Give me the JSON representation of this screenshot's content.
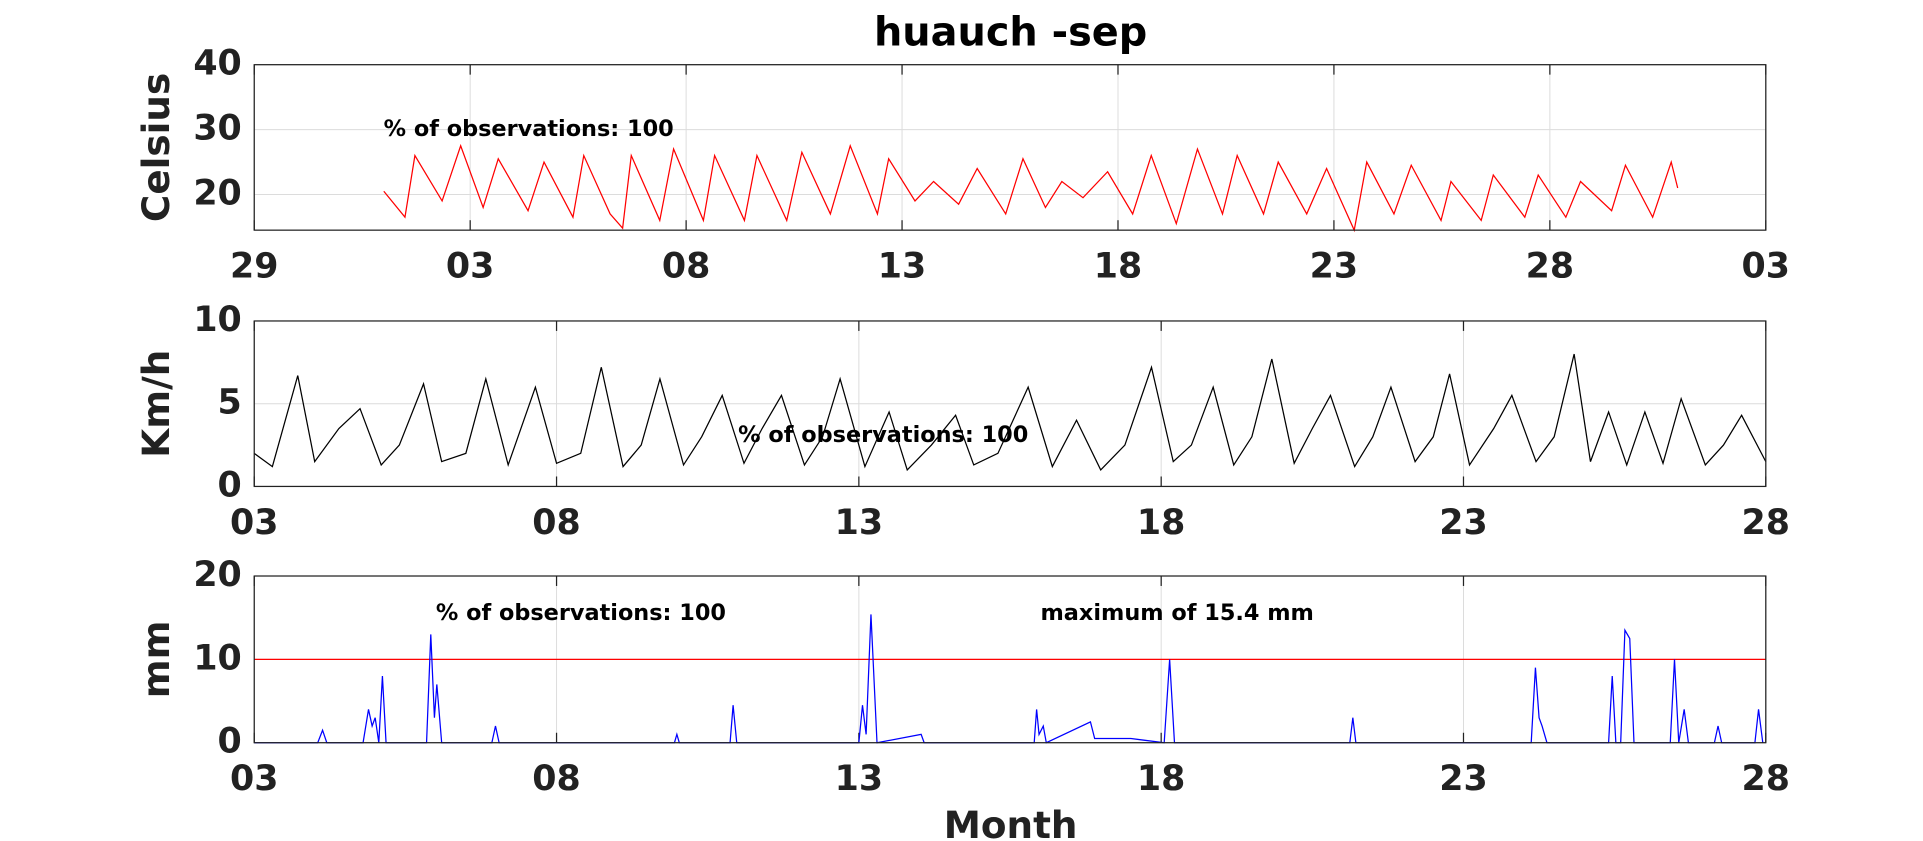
{
  "chart_data": [
    {
      "type": "line",
      "title": "huauch -sep",
      "ylabel": "Celsius",
      "color": "red",
      "grid": true,
      "annotations": [
        "% of observations: 100"
      ],
      "xlim": [
        0,
        35
      ],
      "ylim": [
        14.5,
        40
      ],
      "yticks": [
        20,
        30,
        40
      ],
      "xticks": [
        {
          "value": 0,
          "label": "29"
        },
        {
          "value": 5,
          "label": "03"
        },
        {
          "value": 10,
          "label": "08"
        },
        {
          "value": 15,
          "label": "13"
        },
        {
          "value": 20,
          "label": "18"
        },
        {
          "value": 25,
          "label": "23"
        },
        {
          "value": 30,
          "label": "28"
        },
        {
          "value": 35,
          "label": "03"
        }
      ],
      "x": [
        3.0,
        3.49,
        3.72,
        4.35,
        4.78,
        5.3,
        5.65,
        6.34,
        6.71,
        7.38,
        7.63,
        8.24,
        8.53,
        8.73,
        9.39,
        9.71,
        10.4,
        10.66,
        11.35,
        11.64,
        12.33,
        12.68,
        13.34,
        13.8,
        14.43,
        14.69,
        15.3,
        15.73,
        16.31,
        16.74,
        17.4,
        17.8,
        18.32,
        18.7,
        19.19,
        19.76,
        20.34,
        20.77,
        21.35,
        21.84,
        22.42,
        22.76,
        23.37,
        23.71,
        24.37,
        24.83,
        25.47,
        25.76,
        26.39,
        26.79,
        27.48,
        27.71,
        28.41,
        28.69,
        29.42,
        29.73,
        30.37,
        30.71,
        31.43,
        31.75,
        32.38,
        32.81,
        32.96
      ],
      "values": [
        20.5,
        16.5,
        26,
        19,
        27.5,
        18,
        25.5,
        17.5,
        25,
        16.5,
        26,
        17,
        14.8,
        26,
        16,
        27,
        16,
        26,
        16,
        26,
        16,
        26.5,
        17,
        27.5,
        17,
        25.5,
        19,
        22,
        18.5,
        24,
        17,
        25.5,
        18,
        22,
        19.5,
        23.5,
        17,
        26,
        15.5,
        27,
        17,
        26,
        17,
        25,
        17,
        24,
        14.5,
        25,
        17,
        24.5,
        16,
        22,
        16,
        23,
        16.5,
        23,
        16.5,
        22,
        17.5,
        24.5,
        16.5,
        25,
        21
      ]
    },
    {
      "type": "line",
      "ylabel": "Km/h",
      "color": "black",
      "grid": true,
      "annotations": [
        "% of observations: 100"
      ],
      "xlim": [
        0,
        25
      ],
      "ylim": [
        0,
        10
      ],
      "yticks": [
        0,
        5,
        10
      ],
      "xticks": [
        {
          "value": 0,
          "label": "03"
        },
        {
          "value": 5,
          "label": "08"
        },
        {
          "value": 10,
          "label": "13"
        },
        {
          "value": 15,
          "label": "18"
        },
        {
          "value": 20,
          "label": "23"
        },
        {
          "value": 25,
          "label": "28"
        }
      ],
      "x": [
        0,
        0.3,
        0.72,
        1.0,
        1.4,
        1.75,
        2.1,
        2.4,
        2.8,
        3.1,
        3.5,
        3.83,
        4.2,
        4.65,
        5.0,
        5.4,
        5.74,
        6.1,
        6.4,
        6.71,
        7.1,
        7.4,
        7.74,
        8.1,
        8.4,
        8.72,
        9.1,
        9.4,
        9.69,
        10.1,
        10.5,
        10.8,
        11.2,
        11.6,
        11.9,
        12.3,
        12.8,
        13.2,
        13.6,
        14.0,
        14.4,
        14.84,
        15.2,
        15.5,
        15.86,
        16.2,
        16.5,
        16.83,
        17.2,
        17.5,
        17.8,
        18.2,
        18.5,
        18.8,
        19.2,
        19.5,
        19.77,
        20.1,
        20.5,
        20.8,
        21.2,
        21.5,
        21.83,
        22.1,
        22.4,
        22.7,
        23.0,
        23.3,
        23.6,
        24.0,
        24.3,
        24.6,
        25.0
      ],
      "values": [
        2.0,
        1.2,
        6.7,
        1.5,
        3.5,
        4.7,
        1.3,
        2.5,
        6.2,
        1.5,
        2.0,
        6.5,
        1.3,
        6.0,
        1.4,
        2.0,
        7.2,
        1.2,
        2.5,
        6.5,
        1.3,
        3.0,
        5.5,
        1.4,
        3.5,
        5.5,
        1.3,
        3.0,
        6.5,
        1.2,
        4.5,
        1.0,
        2.5,
        4.3,
        1.3,
        2.0,
        6.0,
        1.2,
        4.0,
        1.0,
        2.5,
        7.2,
        1.5,
        2.5,
        6.0,
        1.3,
        3.0,
        7.7,
        1.4,
        3.5,
        5.5,
        1.2,
        3.0,
        6.0,
        1.5,
        3.0,
        6.8,
        1.3,
        3.5,
        5.5,
        1.5,
        3.0,
        8.0,
        1.5,
        4.5,
        1.3,
        4.5,
        1.4,
        5.3,
        1.3,
        2.5,
        4.3,
        1.5
      ]
    },
    {
      "type": "line",
      "ylabel": "mm",
      "xlabel": "Month",
      "color": "blue",
      "grid": true,
      "annotations": [
        "% of observations: 100",
        "maximum of 15.4 mm"
      ],
      "hline": 10,
      "hline_color": "red",
      "xlim": [
        0,
        25
      ],
      "ylim": [
        0,
        20
      ],
      "yticks": [
        0,
        10,
        20
      ],
      "xticks": [
        {
          "value": 0,
          "label": "03"
        },
        {
          "value": 5,
          "label": "08"
        },
        {
          "value": 10,
          "label": "13"
        },
        {
          "value": 15,
          "label": "18"
        },
        {
          "value": 20,
          "label": "23"
        },
        {
          "value": 25,
          "label": "28"
        }
      ],
      "x": [
        0,
        1.05,
        1.13,
        1.2,
        1.8,
        1.89,
        1.95,
        2.0,
        2.06,
        2.12,
        2.18,
        2.85,
        2.92,
        2.98,
        3.02,
        3.1,
        3.93,
        3.99,
        4.05,
        6.95,
        6.99,
        7.03,
        7.87,
        7.92,
        7.98,
        10.0,
        10.06,
        10.12,
        10.2,
        10.3,
        11.03,
        11.08,
        12.9,
        12.94,
        12.98,
        13.05,
        13.1,
        13.83,
        13.9,
        14.5,
        15.05,
        15.14,
        15.22,
        18.12,
        18.17,
        18.22,
        21.12,
        21.19,
        21.25,
        21.3,
        21.38,
        22.4,
        22.46,
        22.52,
        22.6,
        22.67,
        22.75,
        22.82,
        23.42,
        23.49,
        23.56,
        23.65,
        23.72,
        24.15,
        24.21,
        24.27,
        24.82,
        24.88,
        24.95
      ],
      "values": [
        0,
        0,
        1.5,
        0,
        0,
        4,
        2,
        3,
        0,
        8,
        0,
        0,
        13,
        3,
        7,
        0,
        0,
        2,
        0,
        0,
        1,
        0,
        0,
        4.5,
        0,
        0,
        4.5,
        1,
        15.4,
        0,
        1,
        0,
        0,
        4,
        1,
        2,
        0,
        2.5,
        0.5,
        0.5,
        0,
        10,
        0,
        0,
        3,
        0,
        0,
        9,
        3,
        2,
        0,
        0,
        8,
        0,
        0,
        13.5,
        12.5,
        0,
        0,
        10,
        0,
        4,
        0,
        0,
        2,
        0,
        0,
        4,
        0
      ]
    }
  ]
}
